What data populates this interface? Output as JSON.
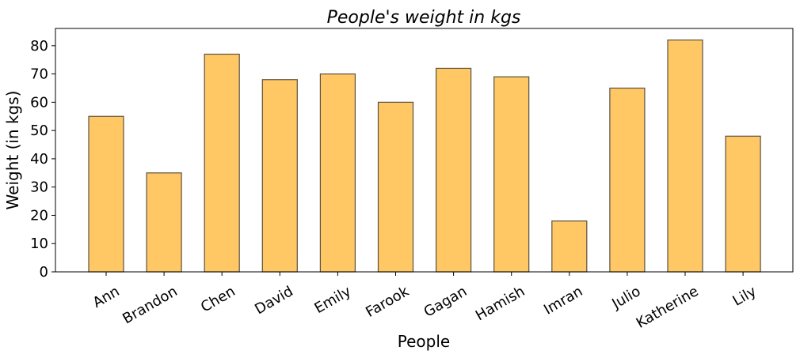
{
  "chart_data": {
    "type": "bar",
    "title": "People's weight in kgs",
    "xlabel": "People",
    "ylabel": "Weight (in kgs)",
    "categories": [
      "Ann",
      "Brandon",
      "Chen",
      "David",
      "Emily",
      "Farook",
      "Gagan",
      "Hamish",
      "Imran",
      "Julio",
      "Katherine",
      "Lily"
    ],
    "values": [
      55,
      35,
      77,
      68,
      70,
      60,
      72,
      69,
      18,
      65,
      82,
      48
    ],
    "ylim": [
      0,
      86.1
    ],
    "yticks": [
      0,
      10,
      20,
      30,
      40,
      50,
      60,
      70,
      80
    ],
    "grid": false,
    "bar_color": "#FFC864",
    "bar_edge_color": "#5a5040"
  }
}
